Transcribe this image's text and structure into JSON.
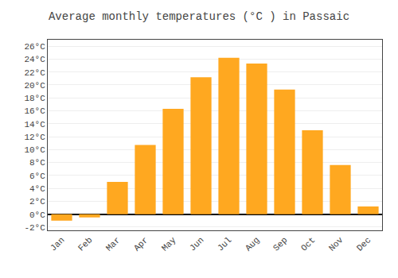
{
  "chart_data": {
    "type": "bar",
    "title": "Average monthly temperatures (°C ) in Passaic",
    "categories": [
      "Jan",
      "Feb",
      "Mar",
      "Apr",
      "May",
      "Jun",
      "Jul",
      "Aug",
      "Sep",
      "Oct",
      "Nov",
      "Dec"
    ],
    "values": [
      -1.0,
      -0.5,
      5.0,
      10.7,
      16.3,
      21.2,
      24.2,
      23.3,
      19.3,
      13.0,
      7.6,
      1.2
    ],
    "color": "#FFA820",
    "ylim": [
      -2.5,
      27
    ],
    "yticks": [
      {
        "value": -2,
        "label": "-2°C"
      },
      {
        "value": 0,
        "label": "0°C"
      },
      {
        "value": 2,
        "label": "2°C"
      },
      {
        "value": 4,
        "label": "4°C"
      },
      {
        "value": 6,
        "label": "6°C"
      },
      {
        "value": 8,
        "label": "8°C"
      },
      {
        "value": 10,
        "label": "10°C"
      },
      {
        "value": 12,
        "label": "12°C"
      },
      {
        "value": 14,
        "label": "14°C"
      },
      {
        "value": 16,
        "label": "16°C"
      },
      {
        "value": 18,
        "label": "18°C"
      },
      {
        "value": 20,
        "label": "20°C"
      },
      {
        "value": 22,
        "label": "22°C"
      },
      {
        "value": 24,
        "label": "24°C"
      },
      {
        "value": 26,
        "label": "26°C"
      }
    ],
    "grid": true
  }
}
